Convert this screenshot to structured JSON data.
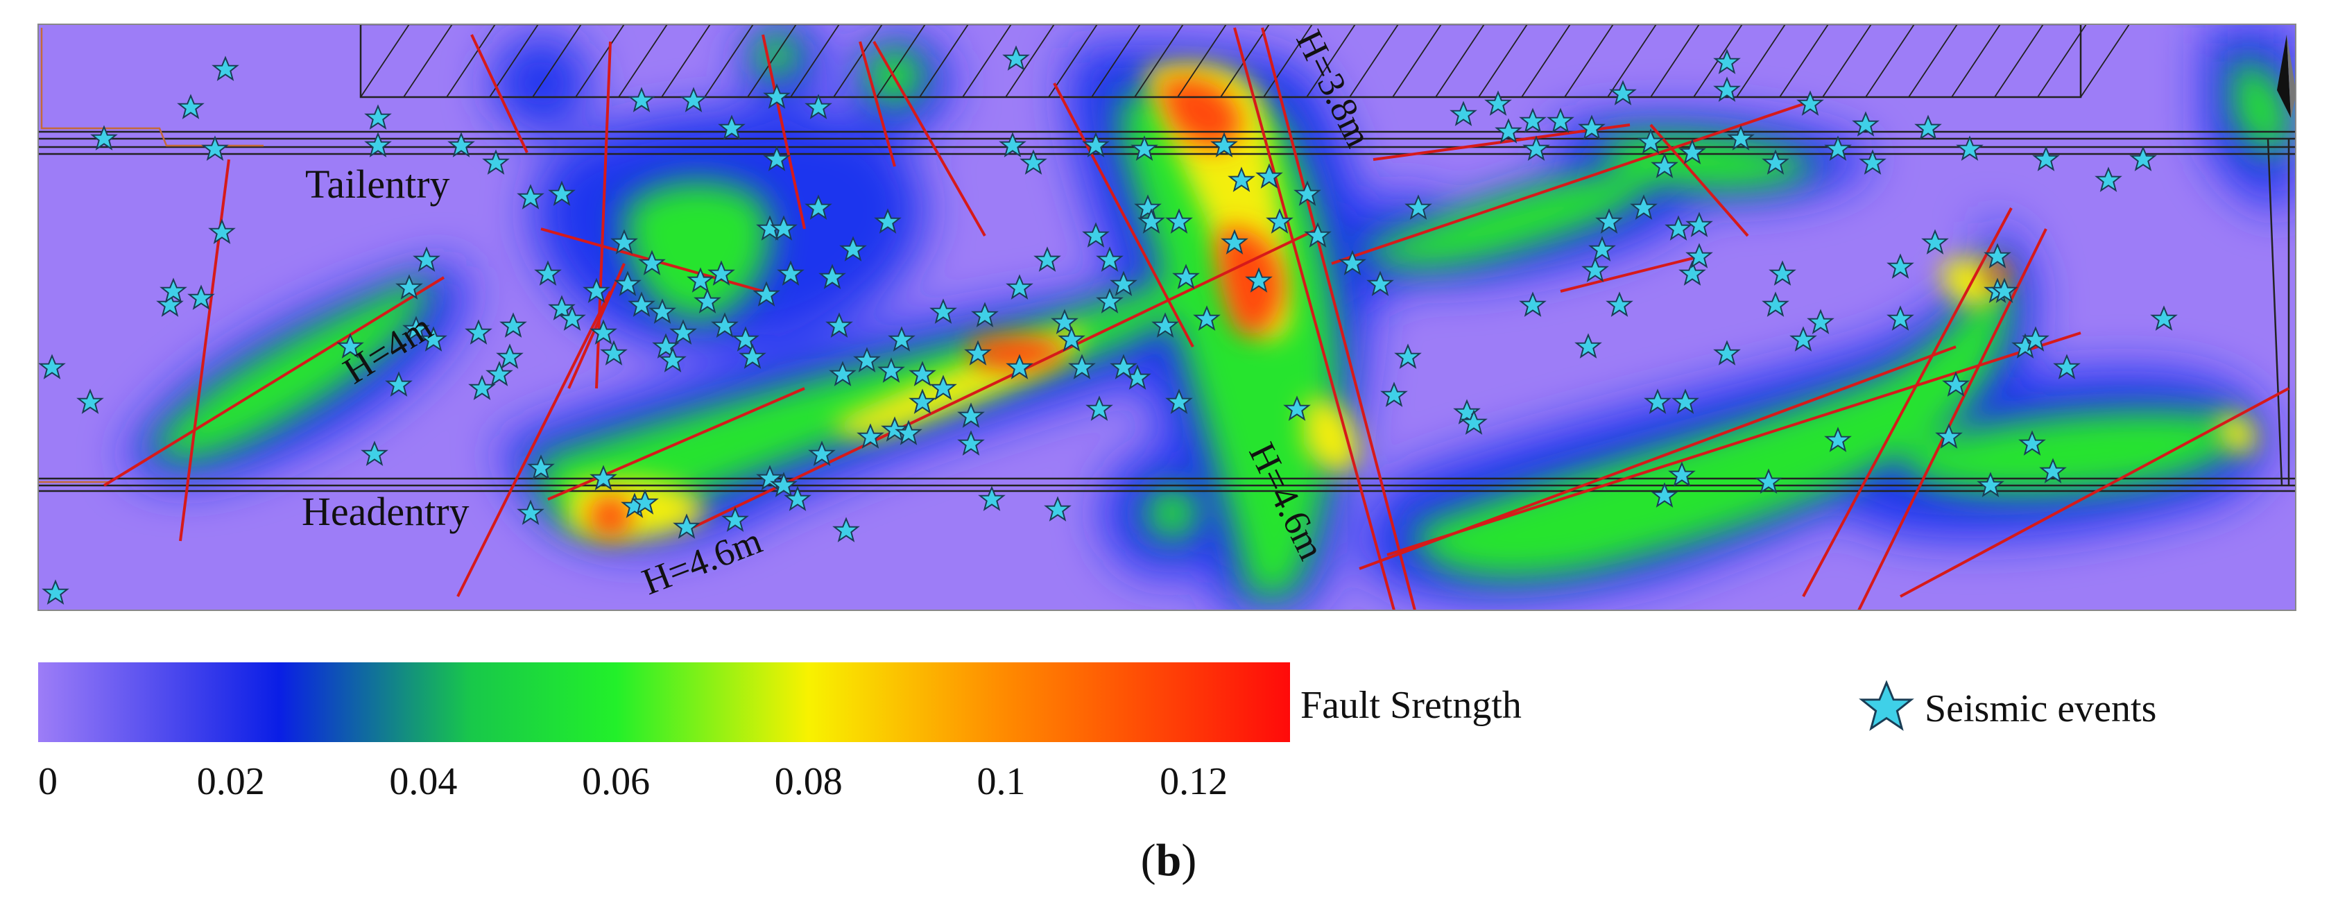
{
  "map": {
    "roadways": [
      {
        "id": "tailentry",
        "label": "Tailentry"
      },
      {
        "id": "headentry",
        "label": "Headentry"
      }
    ],
    "fault_labels": [
      {
        "id": "fault-h4",
        "label": "H=4m"
      },
      {
        "id": "fault-h38",
        "label": "H=3.8m"
      },
      {
        "id": "fault-h46-a",
        "label": "H=4.6m"
      },
      {
        "id": "fault-h46-b",
        "label": "H=4.6m"
      }
    ],
    "north_arrow": "north-arrow-icon",
    "colors": {
      "background": "#9d7df7",
      "low": "#1f3df0",
      "mid": "#22e040",
      "high": "#ff2200",
      "star_fill": "#3fd0e8",
      "fault_line": "#d61a1a"
    }
  },
  "colorbar": {
    "title": "Fault Sretngth",
    "range": [
      0,
      0.13
    ],
    "ticks": [
      "0",
      "0.02",
      "0.04",
      "0.06",
      "0.08",
      "0.1",
      "0.12"
    ],
    "tick_values": [
      0,
      0.02,
      0.04,
      0.06,
      0.08,
      0.1,
      0.12
    ],
    "stops": [
      {
        "v": 0.0,
        "c": "#9d7df7"
      },
      {
        "v": 0.025,
        "c": "#0a1ee6"
      },
      {
        "v": 0.045,
        "c": "#18c84a"
      },
      {
        "v": 0.06,
        "c": "#22f02a"
      },
      {
        "v": 0.08,
        "c": "#f8f200"
      },
      {
        "v": 0.1,
        "c": "#ff8c00"
      },
      {
        "v": 0.13,
        "c": "#ff0a0a"
      }
    ]
  },
  "legend": {
    "marker": "star-icon",
    "label": "Seismic events"
  },
  "caption": {
    "open": "(",
    "letter": "b",
    "close": ")"
  }
}
